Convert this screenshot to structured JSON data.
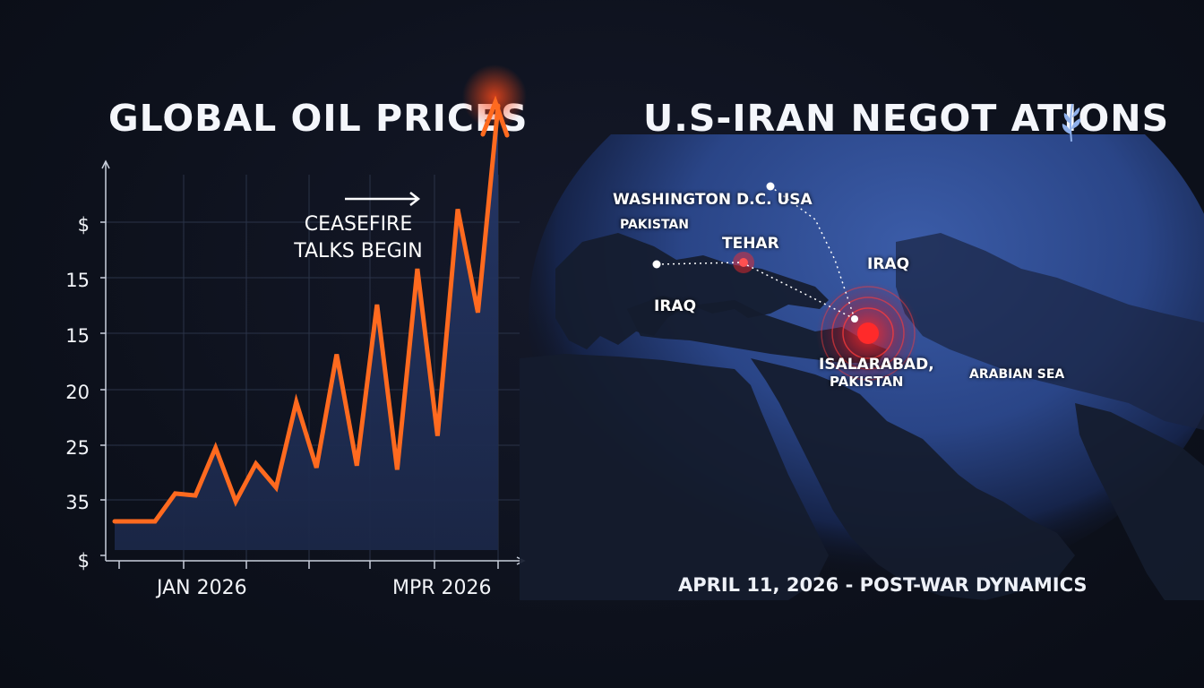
{
  "chart_data": {
    "type": "line",
    "title": "GLOBAL OIL PRICES",
    "xlabel": "",
    "ylabel": "",
    "y_tick_labels": [
      "$",
      "15",
      "15",
      "20",
      "25",
      "35",
      "$"
    ],
    "x_tick_labels": [
      "JAN 2026",
      "MPR 2026"
    ],
    "annotation": {
      "line1": "CEASEFIRE",
      "line2": "TALKS BEGIN"
    },
    "series": [
      {
        "values": [
          12.9,
          12.9,
          12.9,
          14.3,
          14.2,
          16.6,
          13.9,
          15.8,
          14.6,
          18.9,
          15.6,
          21.3,
          15.7,
          23.8,
          15.5,
          25.6,
          17.2,
          28.6,
          23.4,
          33.8
        ]
      }
    ],
    "colors": {
      "line": "#ff6a1f",
      "fill": "#1e2c4f",
      "grid": "#2a3348",
      "axis": "#c9cfdc"
    },
    "grid": true
  },
  "map": {
    "title": "U.S-IRAN NEGOT ATIONS",
    "title_icon": "olive-branch-icon",
    "labels": {
      "washington": "WASHINGTON D.C. USA",
      "pakistan_top": "PAKISTAN",
      "tehar": "TEHAR",
      "iraq_east": "IRAQ",
      "iraq_west": "IRAQ",
      "isalarabad_line1": "ISALARABAD,",
      "isalarabad_line2": "PAKISTAN",
      "arabian_sea": "ARABIAN SEA"
    },
    "subtitle": "APRIL 11, 2026 - POST-WAR DYNAMICS",
    "colors": {
      "ocean": "#2f4f9a",
      "land": "#151c2e",
      "pulse": "#ff2d2d"
    }
  }
}
